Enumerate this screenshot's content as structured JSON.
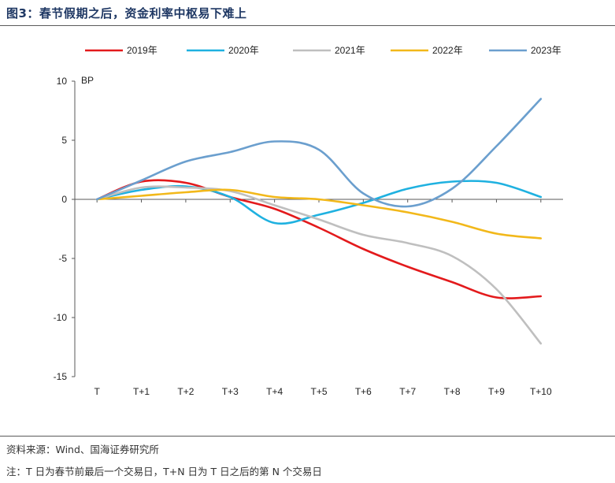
{
  "title": "图3：春节假期之后，资金利率中枢易下难上",
  "source_note": "资料来源：Wind、国海证券研究所",
  "footnote": "注：T 日为春节前最后一个交易日，T+N 日为 T 日之后的第 N 个交易日",
  "chart_data": {
    "type": "line",
    "title": "图3：春节假期之后，资金利率中枢易下难上",
    "ylabel": "BP",
    "xlabel": "",
    "categories": [
      "T",
      "T+1",
      "T+2",
      "T+3",
      "T+4",
      "T+5",
      "T+6",
      "T+7",
      "T+8",
      "T+9",
      "T+10"
    ],
    "ylim": [
      -15,
      10
    ],
    "yticks": [
      10,
      5,
      0,
      -5,
      -10,
      -15
    ],
    "grid": false,
    "legend_position": "top",
    "series": [
      {
        "name": "2019年",
        "color": "#e31a1c",
        "values": [
          0,
          1.5,
          1.4,
          0.2,
          -0.8,
          -2.4,
          -4.2,
          -5.7,
          -7.0,
          -8.3,
          -8.2
        ]
      },
      {
        "name": "2020年",
        "color": "#1fb1e0",
        "values": [
          0,
          0.8,
          1.1,
          0.2,
          -2.0,
          -1.3,
          -0.3,
          0.9,
          1.5,
          1.4,
          0.2
        ]
      },
      {
        "name": "2021年",
        "color": "#bfbfbf",
        "values": [
          0,
          1.0,
          1.0,
          0.7,
          -0.5,
          -1.7,
          -3.0,
          -3.7,
          -4.8,
          -7.6,
          -12.2
        ]
      },
      {
        "name": "2022年",
        "color": "#f2b81a",
        "values": [
          0,
          0.3,
          0.6,
          0.8,
          0.2,
          0.0,
          -0.5,
          -1.1,
          -1.9,
          -2.9,
          -3.3
        ]
      },
      {
        "name": "2023年",
        "color": "#6b9fce",
        "values": [
          0,
          1.6,
          3.2,
          4.0,
          4.9,
          4.2,
          0.5,
          -0.6,
          0.9,
          4.5,
          8.5
        ]
      }
    ]
  }
}
